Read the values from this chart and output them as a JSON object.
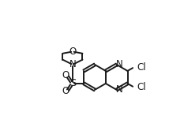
{
  "bg_color": "#ffffff",
  "line_color": "#1a1a1a",
  "line_width": 1.4,
  "font_size": 8.5,
  "figsize": [
    2.14,
    1.75
  ],
  "dpi": 100,
  "xlim": [
    0.0,
    1.0
  ],
  "ylim": [
    0.0,
    1.0
  ]
}
